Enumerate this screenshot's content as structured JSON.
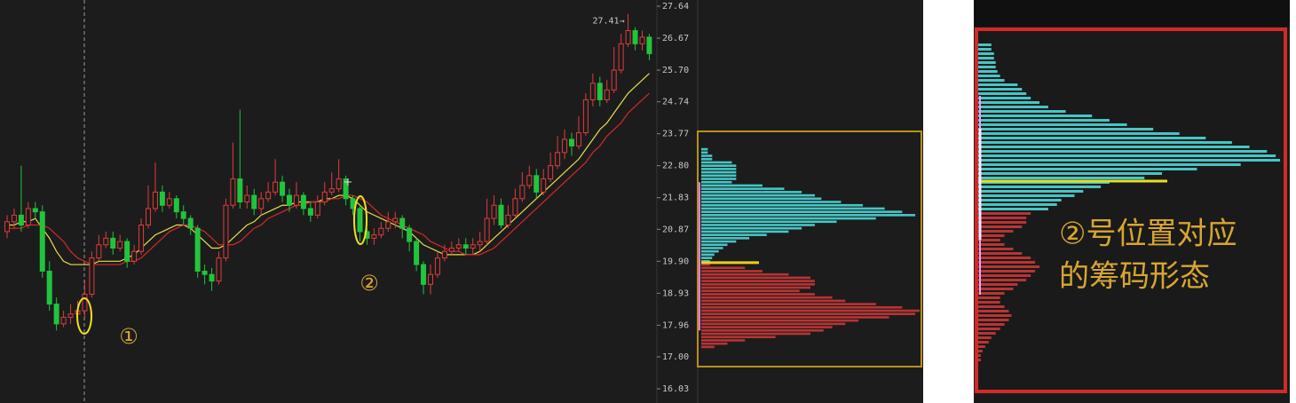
{
  "chart_data": [
    {
      "type": "candlestick",
      "ylim": [
        16.03,
        27.64
      ],
      "yticks": [
        27.64,
        26.67,
        {
          "value": 25.7,
          "label": "25.70"
        },
        24.74,
        23.77,
        {
          "value": 22.8,
          "label": "22.80"
        },
        21.83,
        20.87,
        {
          "value": 19.9,
          "label": "19.90"
        },
        18.93,
        17.96,
        {
          "value": 17,
          "label": "17.00"
        },
        16.03
      ],
      "open": [
        20.8,
        21.1,
        21.3,
        21.0,
        21.5,
        21.4,
        19.6,
        18.6,
        18.0,
        18.2,
        18.3,
        18.4,
        18.9,
        20.0,
        20.4,
        20.6,
        20.3,
        20.5,
        19.9,
        20.2,
        21.0,
        21.5,
        22.0,
        21.6,
        21.8,
        21.4,
        21.2,
        20.9,
        19.6,
        19.5,
        19.3,
        20.0,
        21.6,
        22.4,
        21.7,
        21.9,
        21.5,
        21.8,
        22.0,
        22.3,
        21.9,
        21.6,
        21.9,
        21.5,
        21.3,
        21.7,
        22.0,
        22.1,
        22.4,
        21.8,
        21.5,
        20.8,
        20.6,
        20.7,
        20.9,
        21.1,
        21.2,
        20.9,
        20.5,
        19.8,
        19.2,
        19.5,
        20.0,
        20.2,
        20.3,
        20.4,
        20.3,
        20.4,
        20.5,
        21.2,
        21.6,
        21.0,
        21.3,
        21.8,
        22.2,
        22.5,
        22.0,
        22.4,
        22.8,
        23.2,
        23.6,
        23.4,
        23.8,
        24.8,
        25.3,
        24.8,
        25.1,
        25.7,
        26.5,
        26.9,
        26.5,
        26.7
      ],
      "high": [
        21.3,
        21.5,
        22.8,
        21.7,
        21.7,
        21.6,
        19.9,
        18.8,
        18.4,
        18.6,
        18.7,
        19.3,
        20.2,
        20.7,
        20.8,
        20.8,
        20.7,
        20.6,
        20.4,
        21.2,
        22.2,
        22.9,
        22.2,
        22.0,
        21.9,
        21.6,
        21.3,
        21.0,
        19.8,
        19.7,
        20.2,
        21.8,
        23.5,
        24.5,
        22.2,
        22.1,
        22.0,
        22.3,
        23.0,
        22.5,
        22.1,
        22.3,
        22.0,
        21.7,
        21.9,
        22.3,
        22.6,
        23.0,
        22.5,
        21.9,
        21.6,
        20.9,
        20.9,
        21.1,
        21.4,
        21.4,
        21.3,
        21.0,
        20.6,
        19.9,
        19.8,
        20.2,
        20.4,
        20.5,
        20.6,
        20.6,
        20.6,
        20.8,
        21.8,
        21.9,
        21.8,
        21.6,
        22.1,
        22.6,
        22.8,
        22.7,
        22.7,
        23.2,
        23.7,
        23.9,
        23.8,
        24.3,
        25.0,
        25.6,
        25.5,
        25.4,
        26.4,
        26.8,
        27.41,
        27.0,
        26.9,
        26.8
      ],
      "low": [
        20.6,
        20.9,
        20.8,
        20.9,
        21.2,
        19.4,
        18.4,
        17.8,
        17.9,
        18.0,
        18.1,
        18.2,
        18.8,
        19.9,
        20.3,
        20.1,
        20.2,
        19.7,
        19.8,
        20.1,
        20.9,
        21.4,
        21.4,
        21.5,
        21.2,
        21.0,
        20.7,
        19.4,
        19.2,
        19.0,
        19.2,
        19.9,
        21.5,
        21.5,
        21.5,
        21.3,
        21.3,
        21.7,
        21.9,
        21.7,
        21.4,
        21.5,
        21.3,
        21.1,
        21.2,
        21.6,
        21.9,
        22.0,
        21.6,
        21.3,
        20.5,
        20.4,
        20.4,
        20.6,
        20.8,
        20.9,
        20.6,
        20.2,
        19.6,
        18.9,
        18.9,
        19.4,
        19.9,
        20.1,
        20.2,
        20.1,
        20.1,
        20.2,
        20.4,
        21.0,
        20.9,
        20.9,
        21.2,
        21.7,
        22.1,
        21.8,
        21.9,
        22.3,
        22.7,
        23.0,
        23.1,
        23.3,
        23.7,
        24.6,
        24.6,
        24.7,
        25.0,
        25.6,
        26.4,
        26.3,
        26.3,
        26.0
      ],
      "close": [
        21.1,
        21.3,
        21.0,
        21.5,
        21.4,
        19.6,
        18.6,
        18.0,
        18.2,
        18.3,
        18.4,
        18.9,
        20.0,
        20.4,
        20.6,
        20.3,
        20.5,
        19.9,
        20.2,
        21.0,
        21.5,
        22.0,
        21.6,
        21.8,
        21.4,
        21.2,
        20.9,
        19.6,
        19.5,
        19.3,
        20.0,
        21.6,
        22.4,
        21.7,
        21.9,
        21.5,
        21.8,
        22.0,
        22.3,
        21.9,
        21.6,
        21.9,
        21.5,
        21.3,
        21.7,
        22.0,
        22.1,
        22.4,
        21.8,
        21.5,
        20.8,
        20.6,
        20.7,
        20.9,
        21.1,
        21.2,
        20.9,
        20.5,
        19.8,
        19.2,
        19.5,
        20.0,
        20.2,
        20.3,
        20.4,
        20.3,
        20.4,
        20.5,
        21.2,
        21.6,
        21.0,
        21.3,
        21.8,
        22.2,
        22.5,
        22.0,
        22.4,
        22.8,
        23.2,
        23.6,
        23.4,
        23.8,
        24.8,
        25.3,
        24.8,
        25.1,
        25.7,
        26.5,
        26.9,
        26.5,
        26.7,
        26.2
      ],
      "up_color": "#e03c3c",
      "down_color": "#22c43c",
      "lines": [
        {
          "color": "#e6e04c",
          "values": [
            21.0,
            21.0,
            21.1,
            21.1,
            21.2,
            20.9,
            20.6,
            20.2,
            19.9,
            19.8,
            19.8,
            19.8,
            19.8,
            19.9,
            19.9,
            19.9,
            19.9,
            20.0,
            20.1,
            20.3,
            20.5,
            20.7,
            20.8,
            20.9,
            21.0,
            21.0,
            20.9,
            20.7,
            20.5,
            20.3,
            20.3,
            20.4,
            20.6,
            20.8,
            21.0,
            21.1,
            21.3,
            21.4,
            21.5,
            21.6,
            21.6,
            21.7,
            21.7,
            21.7,
            21.7,
            21.8,
            21.8,
            21.9,
            21.9,
            21.8,
            21.6,
            21.4,
            21.3,
            21.2,
            21.1,
            21.0,
            20.9,
            20.8,
            20.6,
            20.4,
            20.3,
            20.2,
            20.1,
            20.1,
            20.1,
            20.1,
            20.1,
            20.2,
            20.4,
            20.6,
            20.8,
            21.0,
            21.2,
            21.4,
            21.6,
            21.8,
            22.0,
            22.2,
            22.4,
            22.6,
            22.8,
            23.0,
            23.3,
            23.6,
            23.9,
            24.1,
            24.4,
            24.7,
            25.0,
            25.2,
            25.4,
            25.6
          ]
        },
        {
          "color": "#d42a2a",
          "values": [
            20.9,
            20.9,
            20.9,
            21.0,
            21.0,
            21.0,
            20.9,
            20.7,
            20.5,
            20.2,
            20.0,
            19.9,
            19.8,
            19.8,
            19.8,
            19.8,
            19.8,
            19.9,
            19.9,
            20.0,
            20.2,
            20.4,
            20.6,
            20.8,
            20.9,
            21.0,
            21.0,
            20.9,
            20.8,
            20.6,
            20.4,
            20.4,
            20.4,
            20.5,
            20.7,
            20.9,
            21.0,
            21.2,
            21.3,
            21.4,
            21.5,
            21.6,
            21.6,
            21.7,
            21.7,
            21.7,
            21.8,
            21.8,
            21.9,
            21.9,
            21.8,
            21.7,
            21.5,
            21.3,
            21.2,
            21.1,
            21.0,
            20.9,
            20.8,
            20.7,
            20.5,
            20.4,
            20.3,
            20.2,
            20.2,
            20.1,
            20.1,
            20.1,
            20.2,
            20.3,
            20.5,
            20.7,
            20.9,
            21.1,
            21.3,
            21.5,
            21.7,
            21.9,
            22.1,
            22.3,
            22.5,
            22.7,
            22.9,
            23.2,
            23.4,
            23.7,
            23.9,
            24.1,
            24.4,
            24.6,
            24.8,
            25.0
          ]
        }
      ],
      "high_label": "27.41→",
      "annotations": [
        "①",
        "②"
      ],
      "annotation_color": "#d8a630"
    },
    {
      "type": "chip",
      "ylim": [
        16.03,
        27.64
      ],
      "xlim": [
        0,
        100
      ],
      "profit": {
        "color": "#46c6c6",
        "levels": [
          23.3,
          23.2,
          23.1,
          23.0,
          22.9,
          22.8,
          22.7,
          22.6,
          22.5,
          22.4,
          22.3,
          22.2,
          22.1,
          22.0,
          21.9,
          21.8,
          21.7,
          21.6,
          21.5,
          21.4,
          21.3,
          21.2,
          21.1,
          21.0,
          20.9,
          20.8,
          20.7,
          20.6,
          20.5,
          20.4,
          20.3,
          20.2,
          20.1,
          20.0,
          19.9
        ],
        "values": [
          3,
          3,
          5,
          5,
          14,
          16,
          16,
          16,
          16,
          16,
          14,
          28,
          38,
          46,
          52,
          55,
          64,
          74,
          84,
          92,
          98,
          80,
          62,
          52,
          46,
          40,
          30,
          22,
          16,
          12,
          10,
          8,
          6,
          5,
          4
        ]
      },
      "loss": {
        "color": "#b83434",
        "levels": [
          19.8,
          19.7,
          19.6,
          19.5,
          19.4,
          19.3,
          19.2,
          19.1,
          19.0,
          18.9,
          18.8,
          18.7,
          18.6,
          18.5,
          18.4,
          18.3,
          18.2,
          18.1,
          18.0,
          17.9,
          17.8,
          17.7,
          17.6,
          17.5,
          17.4,
          17.3
        ],
        "values": [
          4,
          20,
          28,
          40,
          50,
          52,
          52,
          50,
          45,
          52,
          60,
          66,
          80,
          92,
          100,
          98,
          86,
          72,
          66,
          60,
          56,
          50,
          34,
          20,
          12,
          6
        ]
      },
      "avg_cost": 19.86,
      "avg_color": "#ead020",
      "cost_range": [
        17.8,
        22.3
      ],
      "range_color": "#e47ae4",
      "border": "#b8901c"
    },
    {
      "type": "chip",
      "xlim": [
        0,
        350
      ],
      "upper": {
        "color": "#46c6c6",
        "values": [
          15,
          15,
          18,
          18,
          20,
          20,
          22,
          25,
          30,
          45,
          50,
          55,
          60,
          70,
          80,
          100,
          130,
          150,
          170,
          200,
          230,
          260,
          290,
          310,
          330,
          340,
          345,
          300,
          250,
          210,
          190,
          150,
          140,
          120,
          110,
          95,
          90,
          80
        ]
      },
      "lower": {
        "color": "#b83434",
        "values": [
          60,
          55,
          55,
          50,
          40,
          30,
          25,
          30,
          40,
          50,
          60,
          65,
          70,
          65,
          60,
          55,
          45,
          40,
          30,
          25,
          25,
          30,
          35,
          38,
          35,
          30,
          25,
          20,
          15,
          12,
          8,
          5,
          3,
          3
        ]
      },
      "border": "#d22a2a",
      "caption": [
        "②号位置对应",
        "的筹码形态"
      ],
      "caption_color": "#d8a630"
    }
  ]
}
